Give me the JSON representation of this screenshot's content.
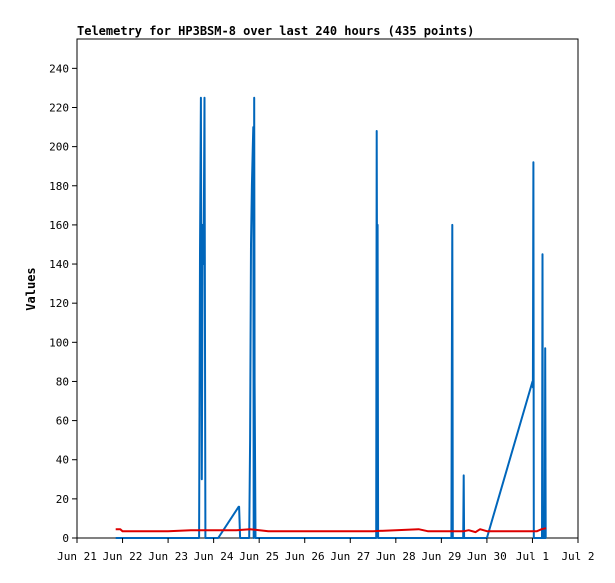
{
  "chart_data": {
    "type": "line",
    "title": "Telemetry for HP3BSM-8 over last 240 hours (435 points)",
    "xlabel": "",
    "ylabel": "Values",
    "x_ticks": [
      "Jun 21",
      "Jun 22",
      "Jun 23",
      "Jun 24",
      "Jun 25",
      "Jun 26",
      "Jun 27",
      "Jun 28",
      "Jun 29",
      "Jun 30",
      "Jul 1",
      "Jul 2"
    ],
    "x_unit": "days since Jun 21 00:00",
    "xlim": [
      0,
      11
    ],
    "ylim": [
      0,
      255
    ],
    "y_ticks": [
      0,
      20,
      40,
      60,
      80,
      100,
      120,
      140,
      160,
      180,
      200,
      220,
      240
    ],
    "grid": false,
    "legend": "none",
    "series": [
      {
        "name": "",
        "color": "#0066bb",
        "x": [
          0.85,
          2.68,
          2.7,
          2.72,
          2.74,
          2.76,
          2.78,
          2.8,
          2.82,
          2.84,
          2.86,
          2.88,
          2.9,
          2.92,
          3.1,
          3.55,
          3.56,
          3.58,
          3.6,
          3.76,
          3.78,
          3.8,
          3.82,
          3.84,
          3.86,
          3.87,
          3.88,
          3.89,
          3.9,
          3.92,
          3.94,
          6.57,
          6.58,
          6.59,
          6.6,
          6.61,
          6.62,
          8.22,
          8.23,
          8.24,
          8.25,
          8.26,
          8.48,
          8.49,
          8.5,
          8.51,
          8.9,
          9.0,
          10.0,
          10.01,
          10.02,
          10.03,
          10.04,
          10.2,
          10.21,
          10.22,
          10.23,
          10.24,
          10.27,
          10.28,
          10.29,
          10.3
        ],
        "y": [
          0,
          0,
          145,
          225,
          30,
          160,
          140,
          225,
          0,
          0,
          0,
          0,
          0,
          0,
          0,
          16,
          16,
          0,
          0,
          0,
          0,
          50,
          150,
          180,
          200,
          210,
          0,
          225,
          80,
          0,
          0,
          0,
          208,
          120,
          160,
          0,
          0,
          0,
          80,
          160,
          0,
          0,
          0,
          32,
          0,
          0,
          0,
          0,
          80,
          77,
          192,
          0,
          0,
          0,
          0,
          145,
          0,
          0,
          0,
          97,
          0,
          0
        ]
      },
      {
        "name": "",
        "color": "#dd0000",
        "x": [
          0.85,
          0.95,
          1.0,
          1.05,
          2.0,
          2.5,
          2.8,
          3.5,
          3.8,
          4.2,
          5.0,
          6.0,
          6.5,
          7.0,
          7.5,
          7.7,
          8.0,
          8.5,
          8.6,
          8.75,
          8.85,
          9.0,
          10.0,
          10.1,
          10.2,
          10.3
        ],
        "y": [
          4.5,
          4.5,
          3.5,
          3.5,
          3.5,
          4.0,
          4.0,
          4.0,
          4.5,
          3.5,
          3.5,
          3.5,
          3.5,
          4.0,
          4.5,
          3.5,
          3.5,
          3.5,
          4.0,
          3.0,
          4.5,
          3.5,
          3.5,
          3.5,
          4.5,
          5.0
        ]
      }
    ]
  }
}
